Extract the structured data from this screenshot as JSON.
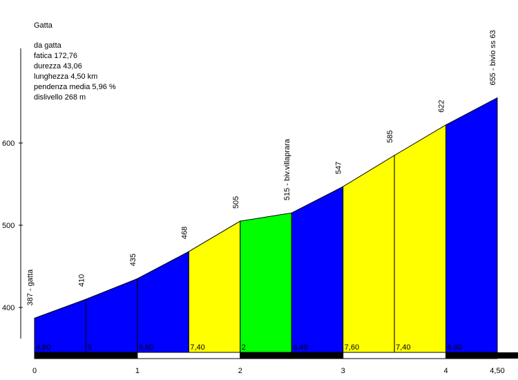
{
  "info": {
    "title": "Gatta",
    "lines": [
      "da gatta",
      "fatica 172,76",
      "durezza 43,06",
      "lunghezza 4,50 km",
      "pendenza media 5,96 %",
      "dislivello 268 m"
    ]
  },
  "chart_data": {
    "type": "area",
    "x_unit": "km",
    "y_unit": "m",
    "xlim": [
      0,
      4.5
    ],
    "ylim": [
      340,
      700
    ],
    "x_ticks": [
      {
        "value": 0,
        "label": "0"
      },
      {
        "value": 1,
        "label": "1"
      },
      {
        "value": 2,
        "label": "2"
      },
      {
        "value": 3,
        "label": "3"
      },
      {
        "value": 4,
        "label": "4"
      },
      {
        "value": 4.5,
        "label": "4,50"
      }
    ],
    "y_ticks": [
      {
        "value": 400,
        "label": "400"
      },
      {
        "value": 500,
        "label": "500"
      },
      {
        "value": 600,
        "label": "600"
      }
    ],
    "points": [
      {
        "x": 0.0,
        "y": 387,
        "label": "387 - gatta"
      },
      {
        "x": 0.5,
        "y": 410,
        "label": "410"
      },
      {
        "x": 1.0,
        "y": 435,
        "label": "435"
      },
      {
        "x": 1.5,
        "y": 468,
        "label": "468"
      },
      {
        "x": 2.0,
        "y": 505,
        "label": "505"
      },
      {
        "x": 2.5,
        "y": 515,
        "label": "515 - biv.villaprara"
      },
      {
        "x": 3.0,
        "y": 547,
        "label": "547"
      },
      {
        "x": 3.5,
        "y": 585,
        "label": "585"
      },
      {
        "x": 4.0,
        "y": 622,
        "label": "622"
      },
      {
        "x": 4.5,
        "y": 655,
        "label": "655 - bivio ss 63"
      }
    ],
    "segments": [
      {
        "from": 0.0,
        "to": 0.5,
        "gradient": "4,60",
        "color": "#0000ff"
      },
      {
        "from": 0.5,
        "to": 1.0,
        "gradient": "5",
        "color": "#0000ff"
      },
      {
        "from": 1.0,
        "to": 1.5,
        "gradient": "6,60",
        "color": "#0000ff"
      },
      {
        "from": 1.5,
        "to": 2.0,
        "gradient": "7,40",
        "color": "#ffff00"
      },
      {
        "from": 2.0,
        "to": 2.5,
        "gradient": "2",
        "color": "#00ff00"
      },
      {
        "from": 2.5,
        "to": 3.0,
        "gradient": "6,40",
        "color": "#0000ff"
      },
      {
        "from": 3.0,
        "to": 3.5,
        "gradient": "7,60",
        "color": "#ffff00"
      },
      {
        "from": 3.5,
        "to": 4.0,
        "gradient": "7,40",
        "color": "#ffff00"
      },
      {
        "from": 4.0,
        "to": 4.5,
        "gradient": "6,60",
        "color": "#0000ff"
      }
    ],
    "km_bar_colors": [
      "#000000",
      "#ffffff"
    ],
    "outline_color": "#000000"
  }
}
